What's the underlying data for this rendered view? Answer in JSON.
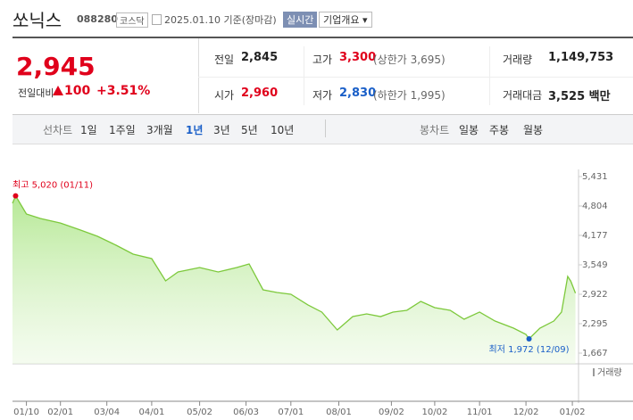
{
  "header": {
    "name": "쏘닉스",
    "code": "088280",
    "market": "코스닥",
    "date": "2025.01.10 기준(장마감)",
    "realtime": "실시간",
    "company": "기업개요"
  },
  "price": {
    "current": "2,945",
    "change_label": "전일대비",
    "change": "100",
    "change_pct": "+3.51%"
  },
  "quote": [
    {
      "label": "전일",
      "value": "2,845"
    },
    {
      "label": "고가",
      "value": "3,300",
      "extra": "(상한가 3,695)"
    },
    {
      "label": "거래량",
      "value": "1,149,753"
    },
    {
      "label": "시가",
      "value": "2,960"
    },
    {
      "label": "저가",
      "value": "2,830",
      "extra": "(하한가 1,995)"
    },
    {
      "label": "거래대금",
      "value": "3,525 백만"
    }
  ],
  "tabs": {
    "line_label": "선차트",
    "periods": [
      "1일",
      "1주일",
      "3개월",
      "1년",
      "3년",
      "5년",
      "10년"
    ],
    "active": 3,
    "candle_label": "봉차트",
    "candles": [
      "일봉",
      "주봉",
      "월봉"
    ]
  },
  "chart_data": {
    "type": "line",
    "color": "#7dc93c",
    "x": [
      0,
      2,
      9,
      18,
      31,
      44,
      55,
      67,
      78,
      90,
      99,
      107,
      121,
      133,
      145,
      153,
      162,
      171,
      180,
      191,
      200,
      210,
      220,
      229,
      238,
      246,
      255,
      264,
      273,
      283,
      292,
      302,
      312,
      324,
      332,
      334,
      341,
      350,
      355,
      359,
      361,
      364
    ],
    "values": [
      4860,
      5020,
      4633,
      4537,
      4441,
      4290,
      4157,
      3967,
      3777,
      3682,
      3207,
      3397,
      3492,
      3397,
      3492,
      3568,
      3017,
      2960,
      2922,
      2694,
      2542,
      2161,
      2446,
      2503,
      2446,
      2542,
      2580,
      2770,
      2637,
      2580,
      2389,
      2542,
      2351,
      2199,
      2066,
      1972,
      2199,
      2351,
      2542,
      3302,
      3200,
      2945
    ],
    "xlim": [
      0,
      366
    ],
    "ylim": [
      1667,
      5431
    ],
    "yticks": [
      {
        "value": 1667,
        "label": "1,667"
      },
      {
        "value": 2295,
        "label": "2,295"
      },
      {
        "value": 2922,
        "label": "2,922"
      },
      {
        "value": 3549,
        "label": "3,549"
      },
      {
        "value": 4177,
        "label": "4,177"
      },
      {
        "value": 4804,
        "label": "4,804"
      },
      {
        "value": 5431,
        "label": "5,431"
      }
    ],
    "xticks": [
      {
        "value": 9,
        "label": "01/10"
      },
      {
        "value": 31,
        "label": "02/01"
      },
      {
        "value": 61,
        "label": "03/04"
      },
      {
        "value": 90,
        "label": "04/01"
      },
      {
        "value": 121,
        "label": "05/02"
      },
      {
        "value": 151,
        "label": "06/03"
      },
      {
        "value": 180,
        "label": "07/01"
      },
      {
        "value": 211,
        "label": "08/01"
      },
      {
        "value": 245,
        "label": "09/02"
      },
      {
        "value": 273,
        "label": "10/02"
      },
      {
        "value": 302,
        "label": "11/01"
      },
      {
        "value": 332,
        "label": "12/02"
      },
      {
        "value": 362,
        "label": "01/02"
      }
    ],
    "high_label": "최고 5,020 (01/11)",
    "low_label": "최저 1,972 (12/09)",
    "volume_label": "거래량"
  }
}
